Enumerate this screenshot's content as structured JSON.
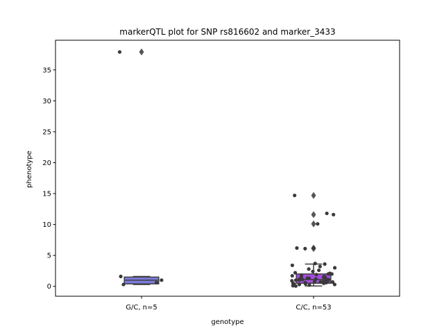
{
  "chart_data": {
    "type": "box",
    "title": "markerQTL plot for SNP rs816602 and marker_3433",
    "xlabel": "genotype",
    "ylabel": "phenotype",
    "ylim": [
      -1.6,
      39.8
    ],
    "yticks": [
      0,
      5,
      10,
      15,
      20,
      25,
      30,
      35
    ],
    "grid": false,
    "categories": [
      "G/C, n=5",
      "C/C, n=53"
    ],
    "groups": [
      {
        "label": "G/C, n=5",
        "box_color": "#7b7bdc",
        "q1": 0.4,
        "median": 1.0,
        "q3": 1.5,
        "whisker_low": 0.3,
        "whisker_high": 1.6,
        "outliers": [
          37.9
        ],
        "points": [
          0.3,
          0.6,
          1.0,
          1.6,
          37.9
        ]
      },
      {
        "label": "C/C, n=53",
        "box_color": "#a64ce0",
        "q1": 0.5,
        "median": 1.1,
        "q3": 2.0,
        "whisker_low": 0.05,
        "whisker_high": 3.6,
        "outliers": [
          6.1,
          6.2,
          10.1,
          11.6,
          14.7
        ],
        "points": [
          0.05,
          0.1,
          0.2,
          0.2,
          0.3,
          0.3,
          0.4,
          0.4,
          0.5,
          0.5,
          0.6,
          0.6,
          0.7,
          0.7,
          0.8,
          0.8,
          0.9,
          0.9,
          1.0,
          1.0,
          1.1,
          1.1,
          1.2,
          1.2,
          1.3,
          1.3,
          1.4,
          1.5,
          1.6,
          1.7,
          1.8,
          1.9,
          2.0,
          2.0,
          2.1,
          2.2,
          2.4,
          2.6,
          2.8,
          3.0,
          3.2,
          3.4,
          3.6,
          3.7,
          1.5,
          0.9,
          6.1,
          6.2,
          6.2,
          10.1,
          11.6,
          11.8,
          14.7
        ]
      }
    ],
    "colors": {
      "edge": "#3f3f3f",
      "point": "#3a3a3a",
      "outlier": "#555555"
    }
  }
}
